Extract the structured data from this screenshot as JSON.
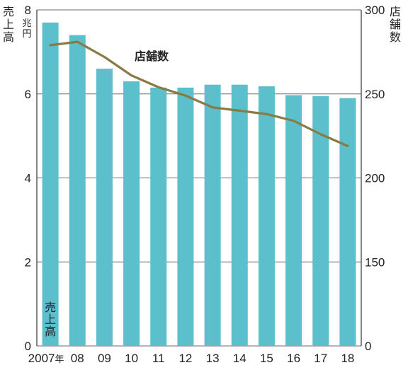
{
  "chart_data": {
    "type": "bar",
    "categories": [
      "2007",
      "08",
      "09",
      "10",
      "11",
      "12",
      "13",
      "14",
      "15",
      "16",
      "17",
      "18"
    ],
    "x_first_suffix": "年",
    "series": [
      {
        "name": "売上高",
        "axis": "left",
        "type": "bar",
        "values": [
          7.7,
          7.4,
          6.6,
          6.3,
          6.15,
          6.15,
          6.22,
          6.22,
          6.18,
          5.97,
          5.95,
          5.9
        ]
      },
      {
        "name": "店舗数",
        "axis": "right",
        "type": "line",
        "values": [
          279,
          281,
          272,
          261,
          254,
          249,
          242,
          240,
          238,
          234,
          226,
          219
        ]
      }
    ],
    "y_left": {
      "label": "売上高",
      "unit": "兆円",
      "ticks": [
        "0",
        "2",
        "4",
        "6",
        "8"
      ],
      "ylim": [
        0,
        8
      ]
    },
    "y_right": {
      "label": "店舗数",
      "ticks": [
        "0",
        "150",
        "200",
        "250",
        "300"
      ],
      "ylim": [
        0,
        300
      ]
    },
    "bar_label": "売上高",
    "line_label": "店舗数",
    "grid": true,
    "colors": {
      "bar": "#5bbfcc",
      "line": "#8a7a45",
      "line_label": "#8a7a45",
      "grid": "#6b6b6b",
      "bar_label": "#ffffff"
    }
  }
}
